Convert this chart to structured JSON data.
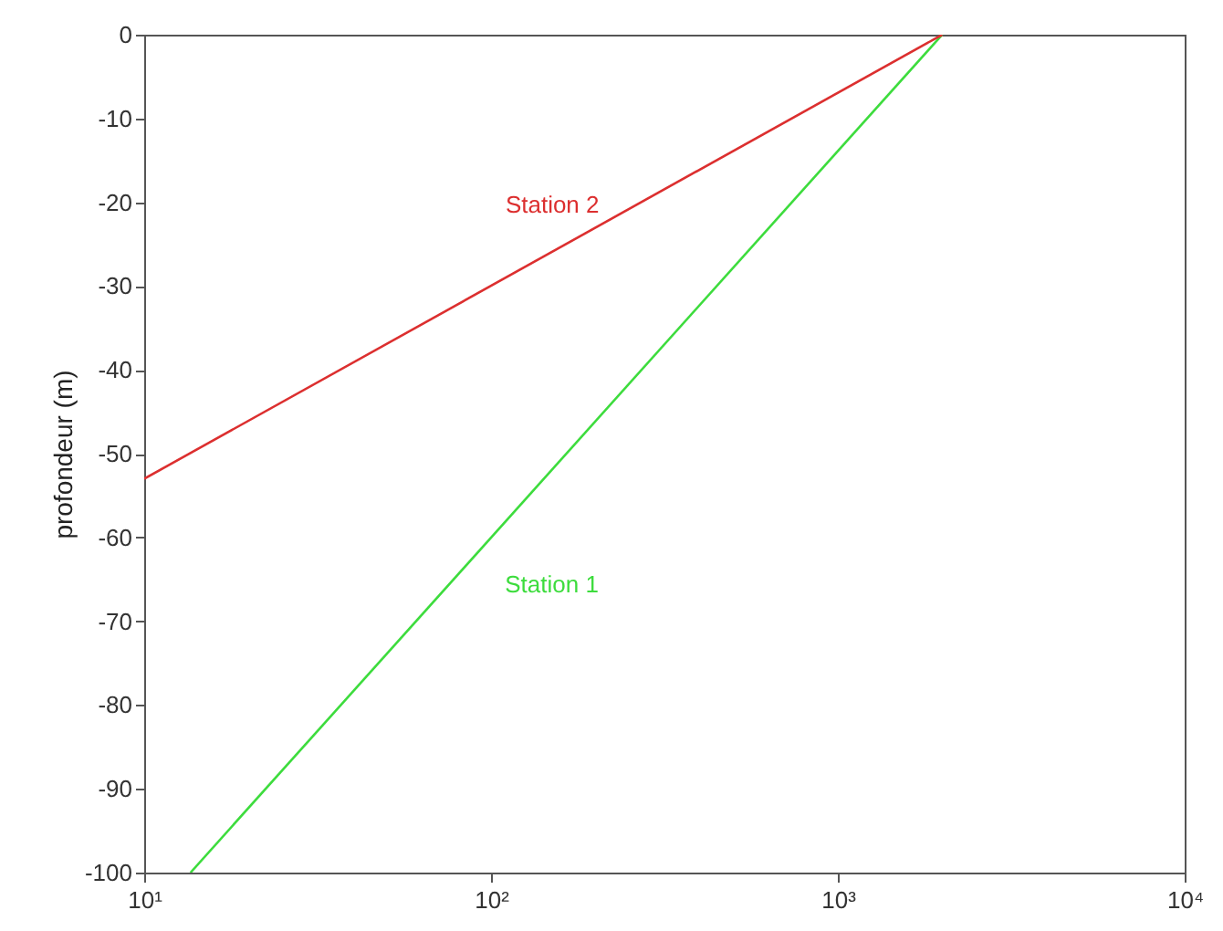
{
  "chart_data": {
    "type": "line",
    "ylabel": "profondeur (m)",
    "log": "x",
    "xlim": [
      10,
      10000
    ],
    "xticks": [
      {
        "value": 10,
        "label": "10¹"
      },
      {
        "value": 100,
        "label": "10²"
      },
      {
        "value": 1000,
        "label": "10³"
      },
      {
        "value": 10000,
        "label": "10⁴"
      }
    ],
    "ylim": [
      -100,
      0
    ],
    "yticks": [
      -100,
      -90,
      -80,
      -70,
      -60,
      -50,
      -40,
      -30,
      -20,
      -10,
      0
    ],
    "grid": false,
    "series": [
      {
        "name": "Station 1",
        "color": "#3ddc3d",
        "x": [
          13.6,
          2000
        ],
        "values": [
          -100,
          0
        ]
      },
      {
        "name": "Station 2",
        "color": "#dc2f2f",
        "x": [
          10,
          2000
        ],
        "values": [
          -53,
          0
        ]
      }
    ]
  }
}
